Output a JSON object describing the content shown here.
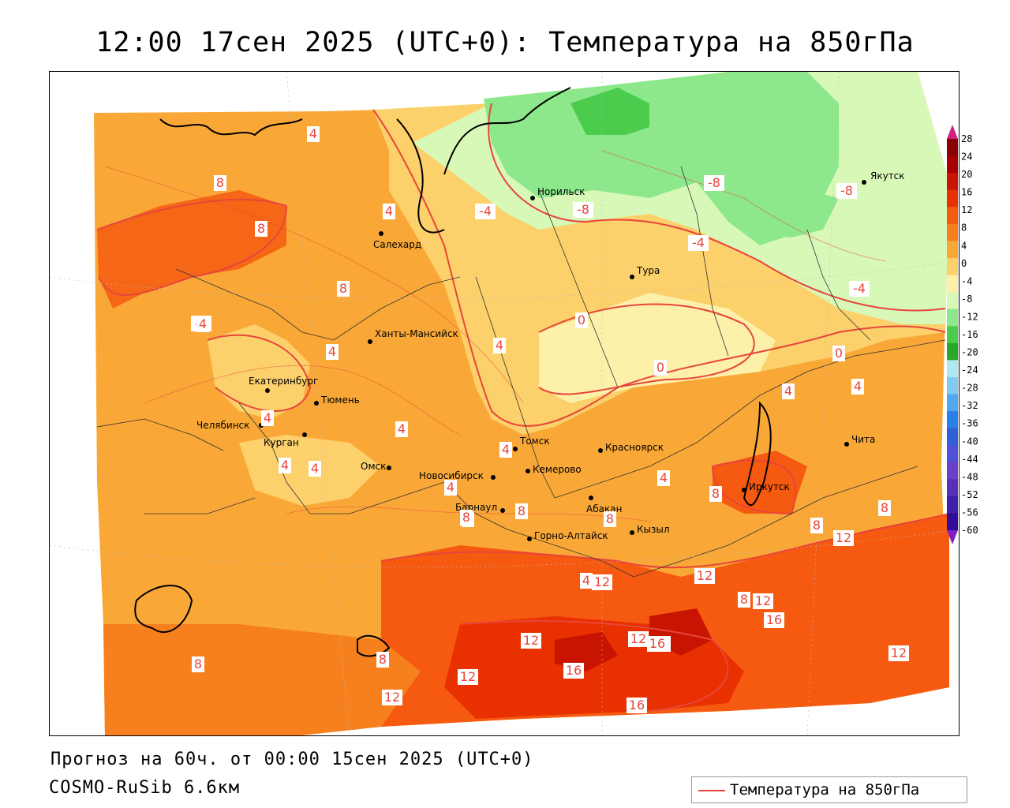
{
  "title": "12:00 17сен 2025 (UTC+0): Температура на 850гПа",
  "footer": {
    "forecast": "Прогноз на 60ч. от 00:00 15сен 2025 (UTC+0)",
    "model": "COSMO-RuSib 6.6км"
  },
  "legend": {
    "label": "Температура на 850гПа",
    "line_color": "#e8453c"
  },
  "colorbar": {
    "ticks": [
      "28",
      "24",
      "20",
      "16",
      "12",
      "8",
      "4",
      "0",
      "-4",
      "-8",
      "-12",
      "-16",
      "-20",
      "-24",
      "-28",
      "-32",
      "-36",
      "-40",
      "-44",
      "-48",
      "-52",
      "-56",
      "-60"
    ],
    "colors": [
      "#8b0000",
      "#a80000",
      "#c81400",
      "#e83000",
      "#f55a10",
      "#f7801e",
      "#f9a838",
      "#fcd06a",
      "#fdf0a8",
      "#d8f8b8",
      "#8ce88a",
      "#4ccc4c",
      "#28a828",
      "#b0e8f0",
      "#80ccf0",
      "#50a8f0",
      "#2880e8",
      "#3060d8",
      "#5050d8",
      "#6a40c8",
      "#5830b8",
      "#4020a8",
      "#300c98"
    ],
    "top_cap_color": "#d02080",
    "bottom_cap_color": "#8020c0"
  },
  "cities": [
    {
      "name": "Норильск"
    },
    {
      "name": "Якутск"
    },
    {
      "name": "Салехард"
    },
    {
      "name": "Тура"
    },
    {
      "name": "Ханты-Мансийск"
    },
    {
      "name": "Екатеринбург"
    },
    {
      "name": "Тюмень"
    },
    {
      "name": "Челябинск"
    },
    {
      "name": "Курган"
    },
    {
      "name": "Омск"
    },
    {
      "name": "Новосибирск"
    },
    {
      "name": "Томск"
    },
    {
      "name": "Кемерово"
    },
    {
      "name": "Красноярск"
    },
    {
      "name": "Чита"
    },
    {
      "name": "Иркутск"
    },
    {
      "name": "Абакан"
    },
    {
      "name": "Барнаул"
    },
    {
      "name": "Горно-Алтайск"
    },
    {
      "name": "Кызыл"
    }
  ],
  "isotherm_labels": [
    "4",
    "8",
    "8",
    "4",
    "-4",
    "-8",
    "-8",
    "-8",
    "-4",
    "-4",
    "-4",
    "8",
    "4",
    "0",
    "0",
    "0",
    "4",
    "4",
    "4",
    "4",
    "4",
    "4",
    "4",
    "4",
    "4",
    "4",
    "8",
    "8",
    "8",
    "8",
    "8",
    "8",
    "8",
    "12",
    "12",
    "12",
    "12",
    "16",
    "16",
    "12",
    "16",
    "16",
    "12",
    "12",
    "8",
    "8",
    "12",
    "12",
    "16",
    "4",
    "4",
    "8"
  ],
  "colors": {
    "isotherm": "#e8453c",
    "coast": "#000000",
    "border": "#333333"
  }
}
